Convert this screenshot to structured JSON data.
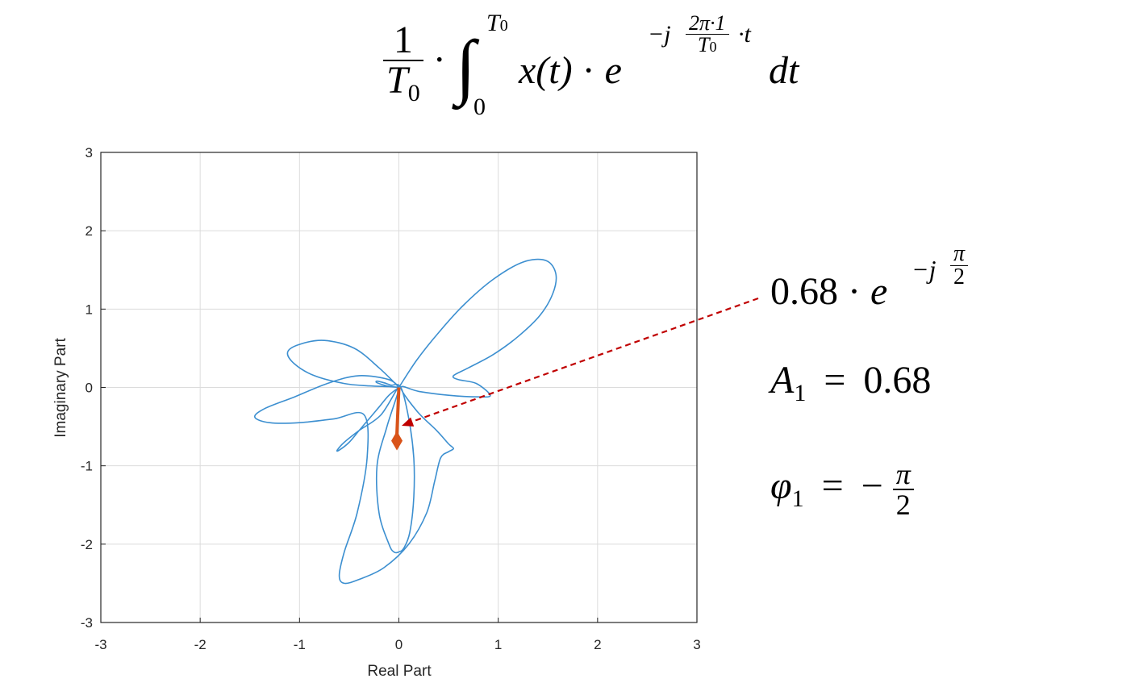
{
  "formula": {
    "one": "1",
    "T0": "T",
    "T0_sub": "0",
    "dot": "·",
    "integral": "∫",
    "upper": "T",
    "upper_sub": "0",
    "lower": "0",
    "integrand_x": "x(t)",
    "dot2": "·",
    "e": "e",
    "exp_prefix": "−j",
    "exp_num": "2π·1",
    "exp_den_T": "T",
    "exp_den_sub": "0",
    "exp_suffix": "·t",
    "dt": "dt"
  },
  "annotations": {
    "phasor_coef": "0.68",
    "phasor_dot": "·",
    "phasor_e": "e",
    "phasor_exp_prefix": "−j",
    "phasor_exp_num": "π",
    "phasor_exp_den": "2",
    "amp_symbol": "A",
    "amp_sub": "1",
    "amp_eq": "=",
    "amp_value": "0.68",
    "phase_symbol": "φ",
    "phase_sub": "1",
    "phase_eq": "=",
    "phase_minus": "−",
    "phase_num": "π",
    "phase_den": "2"
  },
  "chart_data": {
    "type": "line",
    "xlabel": "Real Part",
    "ylabel": "Imaginary Part",
    "xlim": [
      -3,
      3
    ],
    "ylim": [
      -3,
      3
    ],
    "xticks": [
      -3,
      -2,
      -1,
      0,
      1,
      2,
      3
    ],
    "yticks": [
      -3,
      -2,
      -1,
      0,
      1,
      2,
      3
    ],
    "grid": true,
    "series": [
      {
        "color": "#3C8FD0",
        "x": [
          0,
          0.18,
          0.4,
          0.65,
          0.95,
          1.25,
          1.48,
          1.58,
          1.55,
          1.42,
          1.2,
          0.95,
          0.7,
          0.55,
          0.6,
          0.78,
          0.92,
          0.8,
          0.5,
          0.2,
          0.02,
          0.18,
          0.38,
          0.5,
          0.55,
          0.5,
          0.42,
          0.36,
          0.28,
          0.1,
          -0.15,
          -0.4,
          -0.55,
          -0.6,
          -0.55,
          -0.42,
          -0.32,
          -0.35,
          -0.65,
          -1.0,
          -1.3,
          -1.45,
          -1.35,
          -1.05,
          -0.7,
          -0.4,
          -0.1,
          0,
          -0.2,
          -0.45,
          -0.75,
          -1.0,
          -1.12,
          -1.05,
          -0.85,
          -0.55,
          -0.3,
          -0.1,
          0,
          -0.12,
          -0.22,
          -0.22,
          -0.15,
          -0.08,
          0.02,
          0.1,
          0.15,
          0.15,
          0.11,
          0.05,
          0.0,
          -0.05,
          -0.1,
          -0.2,
          -0.22,
          -0.12,
          0,
          -0.18,
          -0.4,
          -0.55,
          -0.62,
          -0.6,
          -0.5,
          -0.4,
          -0.3,
          -0.2,
          -0.1,
          0
        ],
        "y": [
          0,
          0.35,
          0.7,
          1.05,
          1.38,
          1.6,
          1.62,
          1.45,
          1.2,
          0.92,
          0.65,
          0.42,
          0.25,
          0.15,
          0.1,
          0.05,
          -0.1,
          -0.12,
          -0.1,
          -0.05,
          0,
          -0.3,
          -0.55,
          -0.72,
          -0.78,
          -0.82,
          -0.9,
          -1.2,
          -1.6,
          -2.0,
          -2.3,
          -2.45,
          -2.5,
          -2.4,
          -2.1,
          -1.6,
          -0.9,
          -0.35,
          -0.4,
          -0.45,
          -0.45,
          -0.38,
          -0.27,
          -0.12,
          0.06,
          0.15,
          0.1,
          0,
          0.25,
          0.5,
          0.6,
          0.55,
          0.45,
          0.3,
          0.15,
          0.05,
          0.02,
          0.01,
          0,
          0.02,
          0.06,
          0.08,
          0.06,
          0.03,
          0,
          -0.4,
          -0.9,
          -1.4,
          -1.85,
          -2.05,
          -2.1,
          -2.1,
          -2.0,
          -1.6,
          -1.0,
          -0.5,
          0,
          -0.35,
          -0.55,
          -0.7,
          -0.8,
          -0.8,
          -0.7,
          -0.55,
          -0.4,
          -0.25,
          -0.1,
          0
        ]
      }
    ],
    "arrow": {
      "x": [
        0,
        -0.02
      ],
      "y": [
        0,
        -0.68
      ],
      "color": "#D95319"
    },
    "callout_color": "#C00000"
  }
}
